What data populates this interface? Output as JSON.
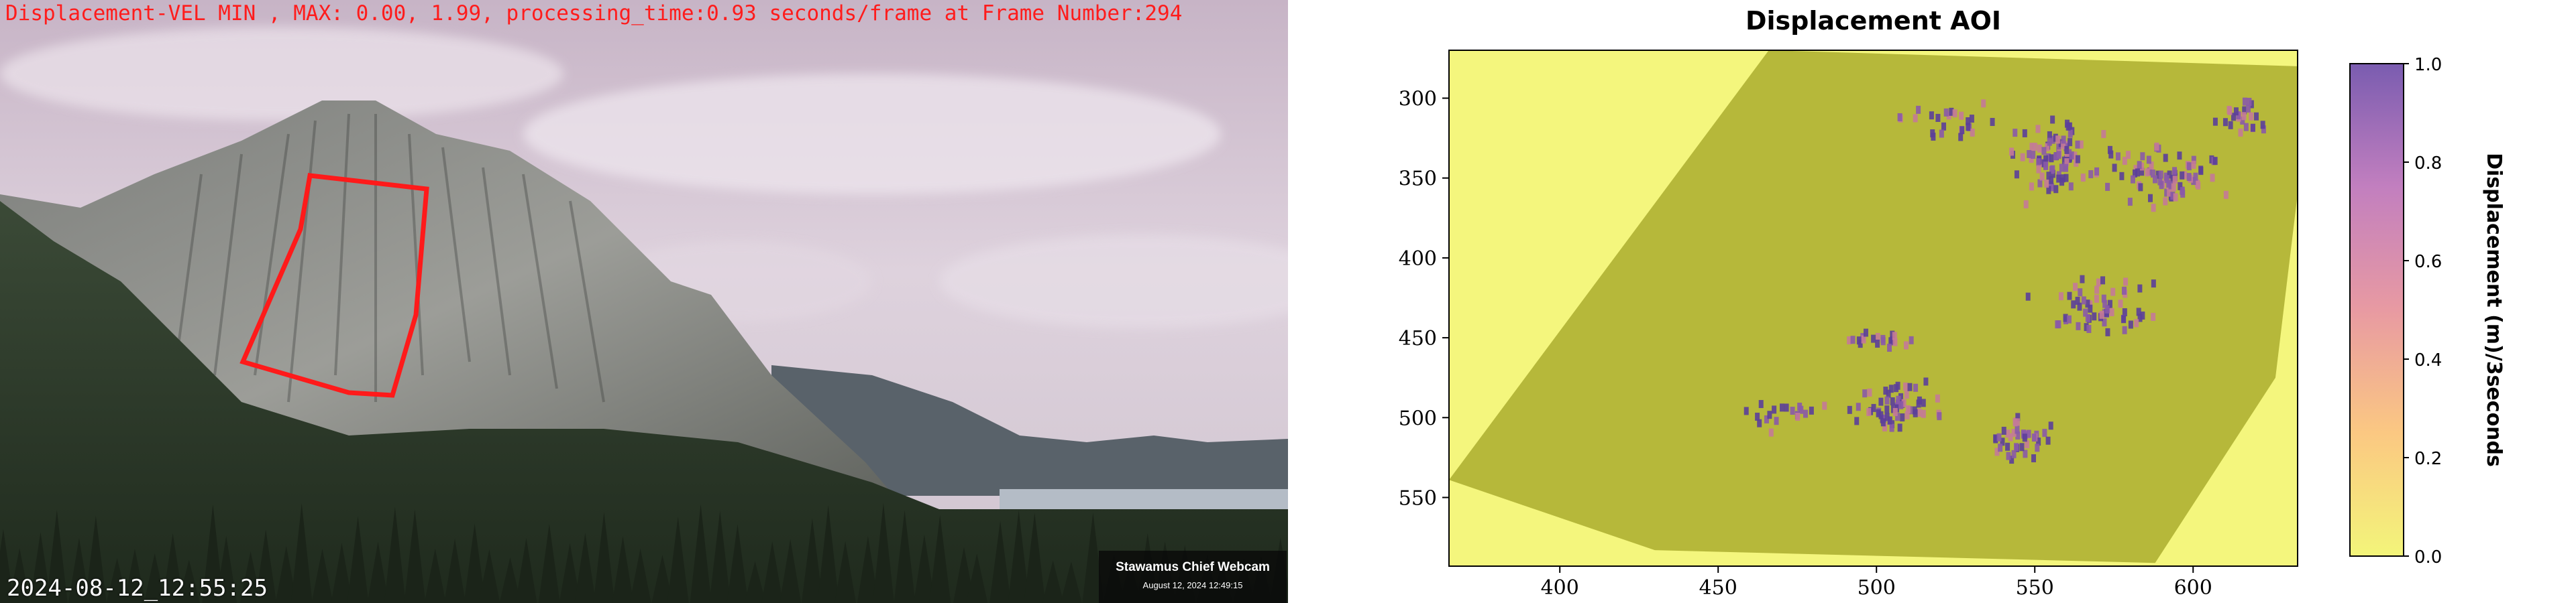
{
  "webcam": {
    "caption": "Displacement-VEL MIN , MAX: 0.00, 1.99, processing_time:0.93 seconds/frame at Frame Number:294",
    "timestamp": "2024-08-12_12:55:25",
    "badge_title": "Stawamus Chief Webcam",
    "badge_date": "August 12, 2024 12:49:15",
    "aoi_color": "#ff1a1a"
  },
  "chart_data": {
    "type": "heatmap",
    "title": "Displacement AOI",
    "xlabel": "",
    "ylabel": "",
    "xlim": [
      365,
      633
    ],
    "ylim": [
      593,
      270
    ],
    "x_ticks": [
      400,
      450,
      500,
      550,
      600
    ],
    "y_ticks": [
      300,
      350,
      400,
      450,
      500,
      550
    ],
    "colorbar": {
      "label": "Displacement (m)/3seconds",
      "range": [
        0,
        1
      ],
      "ticks": [
        0.0,
        0.2,
        0.4,
        0.6,
        0.8,
        1.0
      ],
      "tick_labels": [
        "0.0",
        "0.2",
        "0.4",
        "0.6",
        "0.8",
        "1.0"
      ],
      "colors": [
        "#f3f57a",
        "#fbc882",
        "#e89aa2",
        "#c27fbf",
        "#7a5cb0"
      ]
    },
    "aoi_polygon": [
      [
        466,
        270
      ],
      [
        633,
        280
      ],
      [
        633,
        360
      ],
      [
        626,
        475
      ],
      [
        588,
        591
      ],
      [
        430,
        583
      ],
      [
        365,
        539
      ]
    ],
    "background_color": "#f4f67d",
    "aoi_fill_color": "#b6b83a",
    "hotspot_clusters": [
      {
        "x": 555,
        "y": 335,
        "spread": [
          18,
          30
        ],
        "count": 90
      },
      {
        "x": 590,
        "y": 345,
        "spread": [
          25,
          28
        ],
        "count": 80
      },
      {
        "x": 615,
        "y": 310,
        "spread": [
          10,
          15
        ],
        "count": 25
      },
      {
        "x": 520,
        "y": 310,
        "spread": [
          20,
          20
        ],
        "count": 25
      },
      {
        "x": 570,
        "y": 430,
        "spread": [
          25,
          25
        ],
        "count": 60
      },
      {
        "x": 505,
        "y": 490,
        "spread": [
          22,
          20
        ],
        "count": 60
      },
      {
        "x": 545,
        "y": 510,
        "spread": [
          18,
          18
        ],
        "count": 40
      },
      {
        "x": 470,
        "y": 495,
        "spread": [
          15,
          15
        ],
        "count": 20
      },
      {
        "x": 500,
        "y": 450,
        "spread": [
          18,
          10
        ],
        "count": 20
      }
    ]
  }
}
